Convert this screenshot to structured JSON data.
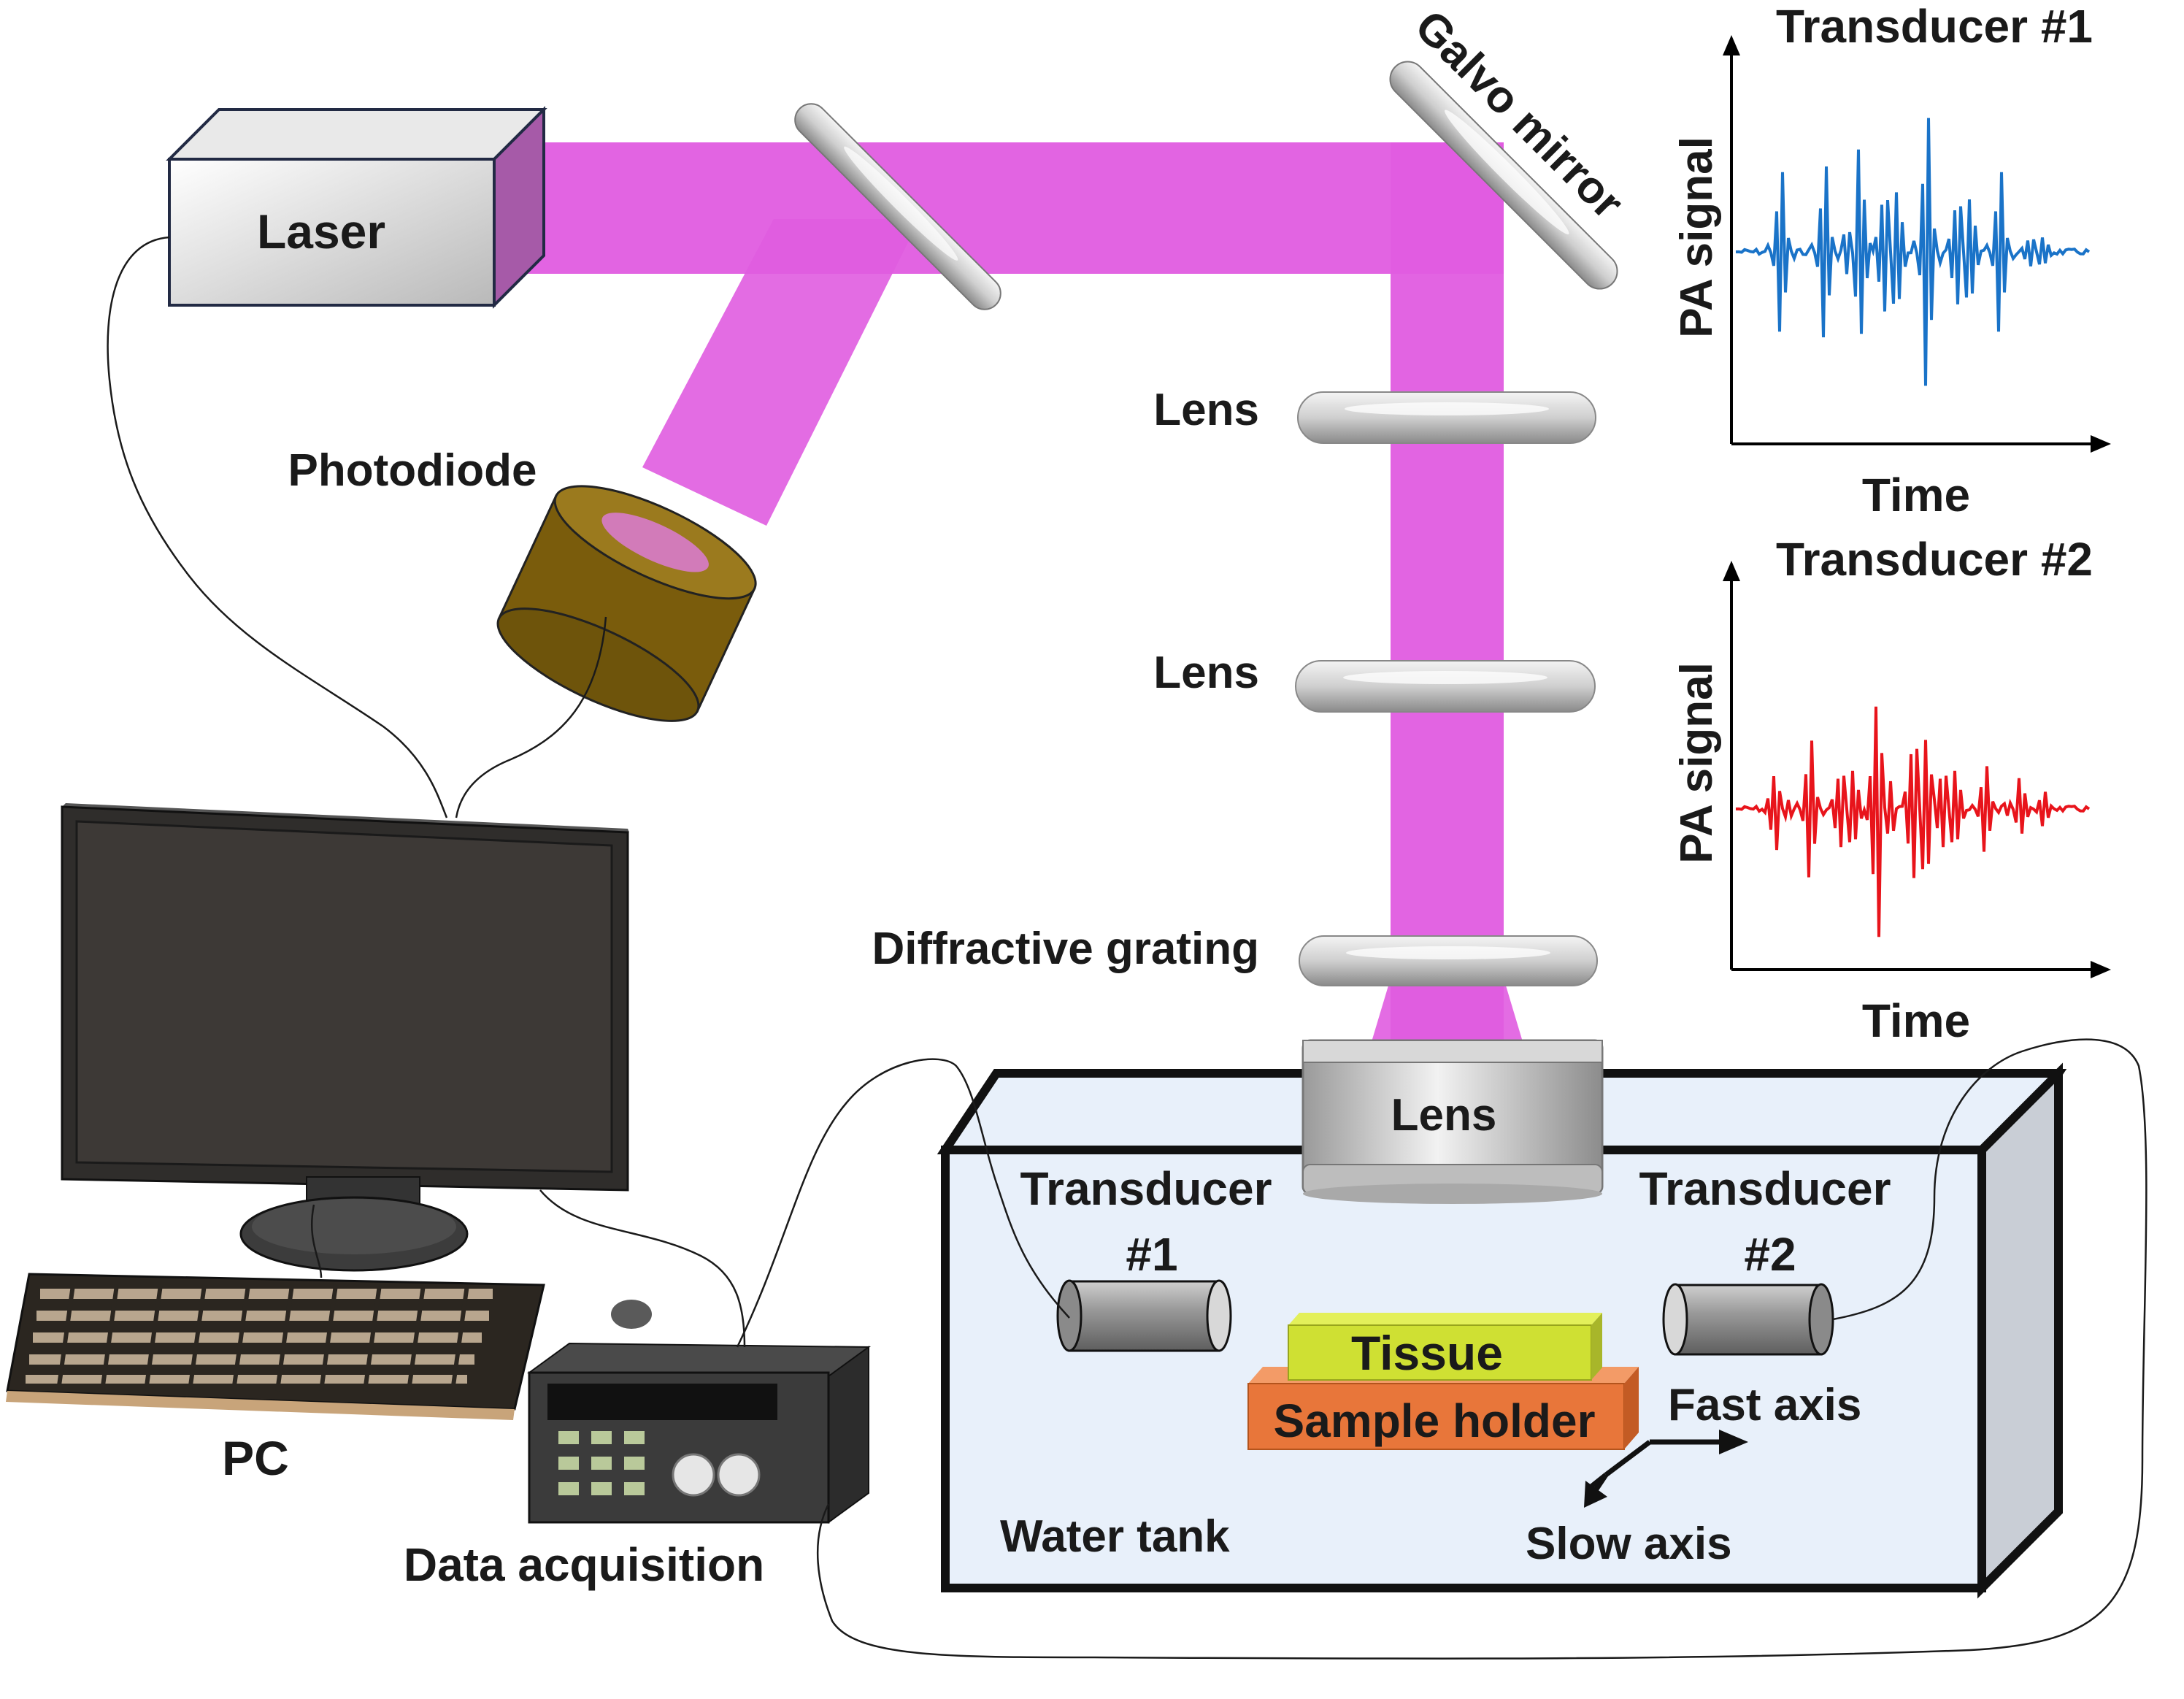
{
  "labels": {
    "laser": "Laser",
    "photodiode": "Photodiode",
    "galvo_mirror": "Galvo mirror",
    "lens_1": "Lens",
    "lens_2": "Lens",
    "diffractive_grating": "Diffractive grating",
    "lens_objective": "Lens",
    "transducer_1_line1": "Transducer",
    "transducer_1_line2": "#1",
    "transducer_2_line1": "Transducer",
    "transducer_2_line2": "#2",
    "tissue": "Tissue",
    "sample_holder": "Sample holder",
    "fast_axis": "Fast axis",
    "slow_axis": "Slow axis",
    "water_tank": "Water tank",
    "pc": "PC",
    "data_acquisition": "Data acquisition"
  },
  "plots": [
    {
      "title": "Transducer #1",
      "ylabel": "PA signal",
      "xlabel": "Time",
      "color": "#1a73c8"
    },
    {
      "title": "Transducer #2",
      "ylabel": "PA signal",
      "xlabel": "Time",
      "color": "#e8141b"
    }
  ],
  "colors": {
    "beam": "#e05ce0",
    "water": "#e8f0fa",
    "tissue": "#cfe033",
    "sample_holder": "#e8763a"
  }
}
